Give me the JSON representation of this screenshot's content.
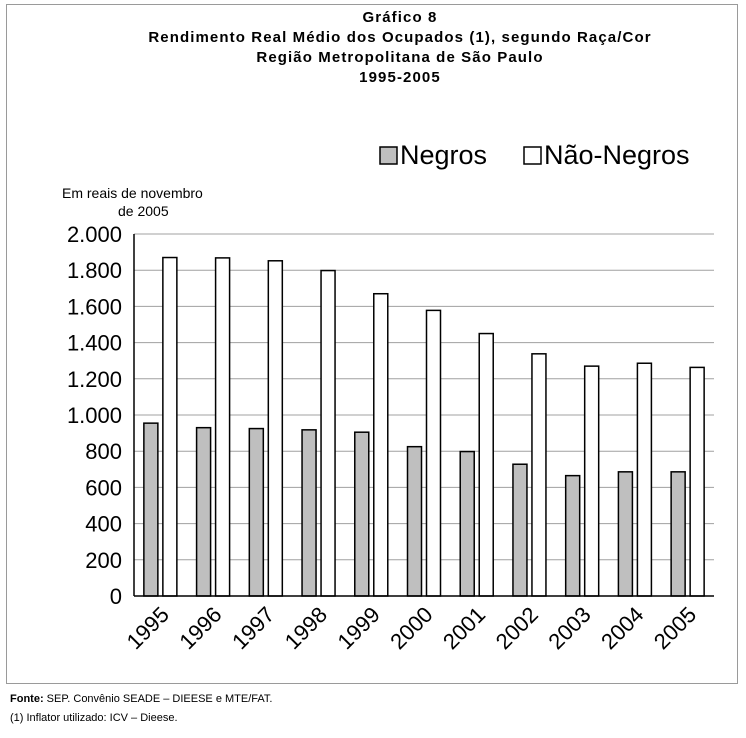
{
  "chart_data": {
    "type": "bar",
    "title_lines": [
      "Gráfico 8",
      "Rendimento Real Médio dos Ocupados (1), segundo Raça/Cor",
      "Região Metropolitana de São Paulo",
      "1995-2005"
    ],
    "ylabel_lines": [
      "Em reais de novembro",
      "de 2005"
    ],
    "categories": [
      "1995",
      "1996",
      "1997",
      "1998",
      "1999",
      "2000",
      "2001",
      "2002",
      "2003",
      "2004",
      "2005"
    ],
    "series": [
      {
        "name": "Negros",
        "color": "#bfbfbf",
        "values": [
          955,
          930,
          925,
          918,
          905,
          825,
          798,
          728,
          665,
          686,
          686
        ]
      },
      {
        "name": "Não-Negros",
        "color": "#ffffff",
        "values": [
          1870,
          1868,
          1852,
          1798,
          1670,
          1578,
          1450,
          1338,
          1270,
          1286,
          1263
        ]
      }
    ],
    "ylim": [
      0,
      2000
    ],
    "yticks": [
      0,
      200,
      400,
      600,
      800,
      1000,
      1200,
      1400,
      1600,
      1800,
      2000
    ],
    "ytick_labels": [
      "0",
      "200",
      "400",
      "600",
      "800",
      "1.000",
      "1.200",
      "1.400",
      "1.600",
      "1.800",
      "2.000"
    ],
    "grid": true,
    "legend_position": "top-right"
  },
  "source": {
    "label": "Fonte:",
    "text": " SEP. Convênio SEADE – DIEESE e MTE/FAT.",
    "note": "(1) Inflator utilizado: ICV – Dieese."
  }
}
